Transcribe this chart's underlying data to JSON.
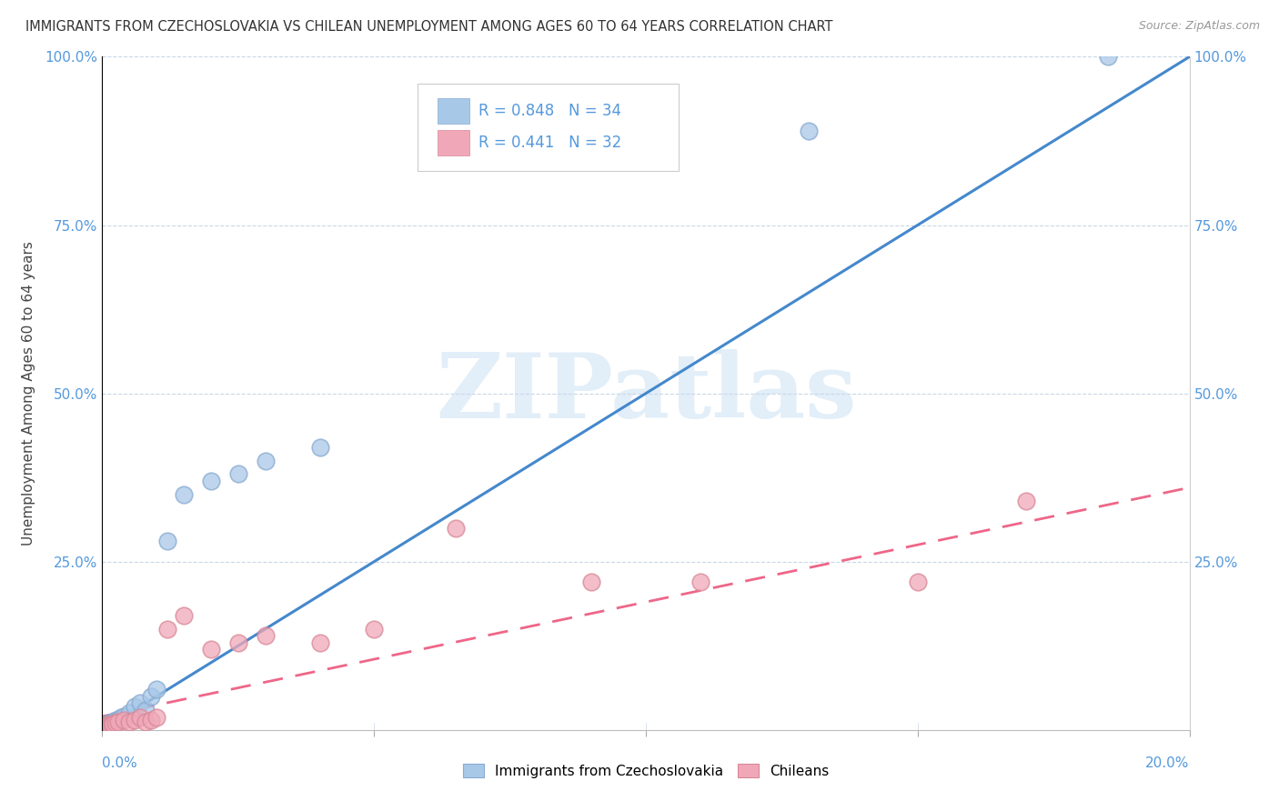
{
  "title": "IMMIGRANTS FROM CZECHOSLOVAKIA VS CHILEAN UNEMPLOYMENT AMONG AGES 60 TO 64 YEARS CORRELATION CHART",
  "source": "Source: ZipAtlas.com",
  "ylabel": "Unemployment Among Ages 60 to 64 years",
  "xlim": [
    0.0,
    0.2
  ],
  "ylim": [
    0.0,
    1.0
  ],
  "blue_color": "#a8c8e8",
  "blue_edge_color": "#88aad0",
  "pink_color": "#f0a8b8",
  "pink_edge_color": "#d88898",
  "blue_line_color": "#4488cc",
  "pink_line_color": "#ee6688",
  "grid_color": "#c8d8e8",
  "legend_r_blue": "0.848",
  "legend_n_blue": "34",
  "legend_r_pink": "0.441",
  "legend_n_pink": "32",
  "legend_label_blue": "Immigrants from Czechoslovakia",
  "legend_label_pink": "Chileans",
  "watermark": "ZIPatlas",
  "background_color": "#ffffff",
  "ytick_color": "#5599dd",
  "xtick_color": "#5599dd",
  "blue_scatter_x": [
    0.0002,
    0.0003,
    0.0005,
    0.0006,
    0.0007,
    0.0008,
    0.0009,
    0.001,
    0.0012,
    0.0013,
    0.0015,
    0.0017,
    0.0019,
    0.002,
    0.0022,
    0.0024,
    0.0026,
    0.003,
    0.0035,
    0.004,
    0.005,
    0.006,
    0.007,
    0.008,
    0.009,
    0.01,
    0.012,
    0.015,
    0.02,
    0.025,
    0.03,
    0.04,
    0.13,
    0.185
  ],
  "blue_scatter_y": [
    0.005,
    0.005,
    0.008,
    0.006,
    0.007,
    0.005,
    0.006,
    0.007,
    0.01,
    0.008,
    0.009,
    0.01,
    0.008,
    0.012,
    0.01,
    0.015,
    0.012,
    0.015,
    0.018,
    0.02,
    0.025,
    0.035,
    0.04,
    0.03,
    0.05,
    0.06,
    0.28,
    0.35,
    0.37,
    0.38,
    0.4,
    0.42,
    0.89,
    1.0
  ],
  "pink_scatter_x": [
    0.0002,
    0.0003,
    0.0005,
    0.0006,
    0.0007,
    0.0008,
    0.001,
    0.0012,
    0.0015,
    0.0018,
    0.002,
    0.0025,
    0.003,
    0.004,
    0.005,
    0.006,
    0.007,
    0.008,
    0.009,
    0.01,
    0.012,
    0.015,
    0.02,
    0.025,
    0.03,
    0.04,
    0.05,
    0.065,
    0.09,
    0.11,
    0.15,
    0.17
  ],
  "pink_scatter_y": [
    0.005,
    0.005,
    0.006,
    0.007,
    0.006,
    0.005,
    0.007,
    0.008,
    0.006,
    0.008,
    0.009,
    0.01,
    0.012,
    0.015,
    0.012,
    0.015,
    0.018,
    0.012,
    0.015,
    0.018,
    0.15,
    0.17,
    0.12,
    0.13,
    0.14,
    0.13,
    0.15,
    0.3,
    0.22,
    0.22,
    0.22,
    0.34
  ],
  "blue_trend_x": [
    0.0,
    0.2
  ],
  "blue_trend_y": [
    0.0,
    1.0
  ],
  "pink_trend_x": [
    0.0,
    0.2
  ],
  "pink_trend_y": [
    0.02,
    0.36
  ]
}
